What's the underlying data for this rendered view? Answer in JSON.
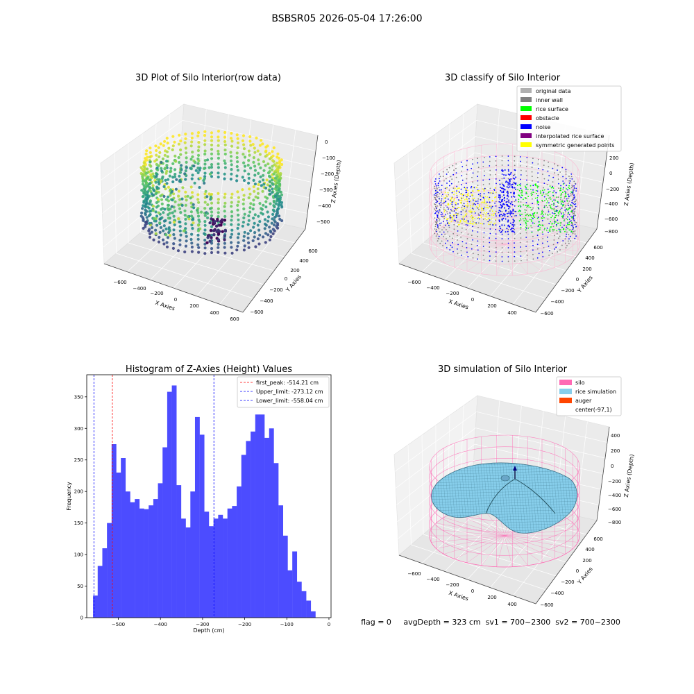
{
  "suptitle": "BSBSR05 2026-05-04 17:26:00",
  "status_line": "flag = 0     avgDepth = 323 cm  sv1 = 700~2300  sv2 = 700~2300",
  "chart_data": [
    {
      "type": "scatter",
      "dims": 3,
      "title": "3D Plot of Silo Interior(row data)",
      "xlabel": "X Axies",
      "ylabel": "Y Axies",
      "zlabel": "Z Axies (Depth)",
      "x_ticks": [
        "−600",
        "−400",
        "−200",
        "0",
        "200",
        "400",
        "600"
      ],
      "y_ticks": [
        "−600",
        "−400",
        "−200",
        "0",
        "200",
        "400",
        "600"
      ],
      "z_ticks": [
        "0",
        "−100",
        "−200",
        "−300",
        "−400",
        "−500"
      ],
      "colormap": "viridis",
      "xlim": [
        -600,
        600
      ],
      "ylim": [
        -600,
        600
      ],
      "zlim": [
        -550,
        0
      ]
    },
    {
      "type": "scatter",
      "dims": 3,
      "title": "3D classify of Silo Interior",
      "xlabel": "X Axies",
      "ylabel": "Y Axies",
      "zlabel": "Z Axies (Depth)",
      "x_ticks": [
        "−600",
        "−400",
        "−200",
        "0",
        "200",
        "400"
      ],
      "y_ticks": [
        "−600",
        "−400",
        "−200",
        "0",
        "200",
        "400",
        "600"
      ],
      "z_ticks": [
        "200",
        "0",
        "−200",
        "−400",
        "−600",
        "−800"
      ],
      "legend_position": "top-right",
      "legend": [
        {
          "label": "original data",
          "color": "#b0b0b0"
        },
        {
          "label": "inner wall",
          "color": "#808080"
        },
        {
          "label": "rice surface",
          "color": "#00ff00"
        },
        {
          "label": "obstacle",
          "color": "#ff0000"
        },
        {
          "label": "noise",
          "color": "#0000ff"
        },
        {
          "label": "interpolated rice surface",
          "color": "#800080"
        },
        {
          "label": "symmetric generated points",
          "color": "#ffff00"
        }
      ],
      "xlim": [
        -600,
        400
      ],
      "ylim": [
        -600,
        600
      ],
      "zlim": [
        -800,
        200
      ]
    },
    {
      "type": "bar",
      "title": "Histogram of Z-Axies (Height) Values",
      "xlabel": "Depth (cm)",
      "ylabel": "Frequency",
      "bar_color": "#4c4cff",
      "bin_start": -560,
      "bin_width": 11.0,
      "values": [
        35,
        82,
        110,
        150,
        275,
        230,
        253,
        200,
        183,
        188,
        173,
        172,
        178,
        188,
        213,
        270,
        358,
        368,
        210,
        157,
        143,
        200,
        318,
        290,
        168,
        145,
        157,
        163,
        157,
        173,
        177,
        208,
        258,
        280,
        295,
        322,
        322,
        285,
        300,
        245,
        178,
        130,
        75,
        105,
        57,
        42,
        27,
        10
      ],
      "xlim": [
        -575,
        5
      ],
      "ylim": [
        0,
        385
      ],
      "x_ticks": [
        -500,
        -400,
        -300,
        -200,
        -100,
        0
      ],
      "x_tick_labels": [
        "−500",
        "−400",
        "−300",
        "−200",
        "−100",
        "0"
      ],
      "y_ticks": [
        0,
        50,
        100,
        150,
        200,
        250,
        300,
        350
      ],
      "y_tick_labels": [
        "0",
        "50",
        "100",
        "150",
        "200",
        "250",
        "300",
        "350"
      ],
      "vlines": [
        {
          "x": -514.21,
          "color": "#ff0000",
          "label": "first_peak: -514.21 cm"
        },
        {
          "x": -273.12,
          "color": "#0000ff",
          "label": "Upper_limit: -273.12 cm"
        },
        {
          "x": -558.04,
          "color": "#0000ff",
          "label": "Lower_limit: -558.04 cm"
        }
      ],
      "legend_position": "top-right",
      "grid": false
    },
    {
      "type": "surface",
      "dims": 3,
      "title": "3D simulation of Silo Interior",
      "xlabel": "X Axies",
      "ylabel": "Y Axies",
      "zlabel": "Z Axies (Depth)",
      "x_ticks": [
        "−600",
        "−400",
        "−200",
        "0",
        "200",
        "400"
      ],
      "y_ticks": [
        "−600",
        "−400",
        "−200",
        "0",
        "200",
        "400",
        "600"
      ],
      "z_ticks": [
        "400",
        "200",
        "0",
        "−200",
        "−400",
        "−600",
        "−800"
      ],
      "legend_position": "top-right",
      "legend": [
        {
          "label": "silo",
          "color": "#ff69b4"
        },
        {
          "label": "rice simulation",
          "color": "#87ceeb"
        },
        {
          "label": "auger",
          "color": "#ff4500"
        },
        {
          "label": "center(-97,1)",
          "color": ""
        }
      ],
      "xlim": [
        -600,
        400
      ],
      "ylim": [
        -600,
        600
      ],
      "zlim": [
        -800,
        400
      ]
    }
  ]
}
